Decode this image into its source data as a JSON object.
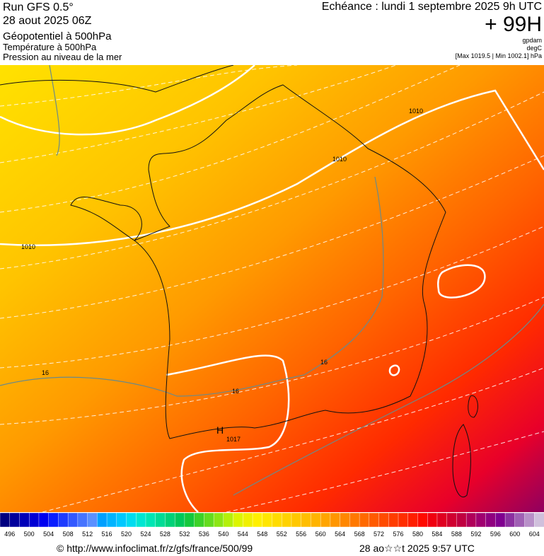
{
  "header": {
    "run": "Run GFS 0.5°",
    "run_date": "28 aout 2025 06Z",
    "field1": "Géopotentiel à 500hPa",
    "field2": "Température à 500hPa",
    "field3": "Pression au niveau de la mer",
    "valid": "Echéance : lundi 1 septembre 2025 9h UTC",
    "lead": "+ 99H",
    "unit1": "gpdam",
    "unit2": "degC",
    "pressure_range": "[Max 1019.5 | Min 1002.1] hPa"
  },
  "map": {
    "contour_labels": [
      "1010",
      "1010",
      "1010",
      "16",
      "16",
      "16",
      "1017",
      "H"
    ]
  },
  "colorbar": {
    "labels": [
      496,
      500,
      504,
      508,
      512,
      516,
      520,
      524,
      528,
      532,
      536,
      540,
      544,
      548,
      552,
      556,
      560,
      564,
      568,
      572,
      576,
      580,
      584,
      588,
      592,
      596,
      600,
      604
    ],
    "colors": [
      "#000080",
      "#00009c",
      "#0000b8",
      "#0000d4",
      "#0000f0",
      "#0a1eff",
      "#1e3cff",
      "#3258ff",
      "#4674ff",
      "#5a90ff",
      "#00a0ff",
      "#00b4ff",
      "#00c8ff",
      "#00dcf0",
      "#00e6d2",
      "#00e6b4",
      "#00dc96",
      "#00d278",
      "#00c85a",
      "#14c83c",
      "#3cd228",
      "#64dc1e",
      "#8ce614",
      "#b4f00a",
      "#dcf500",
      "#f0f000",
      "#fff000",
      "#ffe600",
      "#ffdc00",
      "#ffd200",
      "#ffc800",
      "#ffbe00",
      "#ffb400",
      "#ffa500",
      "#ff9600",
      "#ff8700",
      "#ff7800",
      "#ff6900",
      "#ff5a00",
      "#ff4b00",
      "#ff3c00",
      "#ff2d00",
      "#ff1e00",
      "#ff0a00",
      "#f00010",
      "#e00020",
      "#d00030",
      "#c00040",
      "#b0005a",
      "#a00070",
      "#900080",
      "#800090",
      "#8c30a0",
      "#a060b4",
      "#b890c8",
      "#d0c0dc"
    ]
  },
  "footer": {
    "url": "© http://www.infoclimat.fr/z/gfs/france/500/99",
    "stamp": "28 ao☆☆t 2025  9:57 UTC"
  }
}
